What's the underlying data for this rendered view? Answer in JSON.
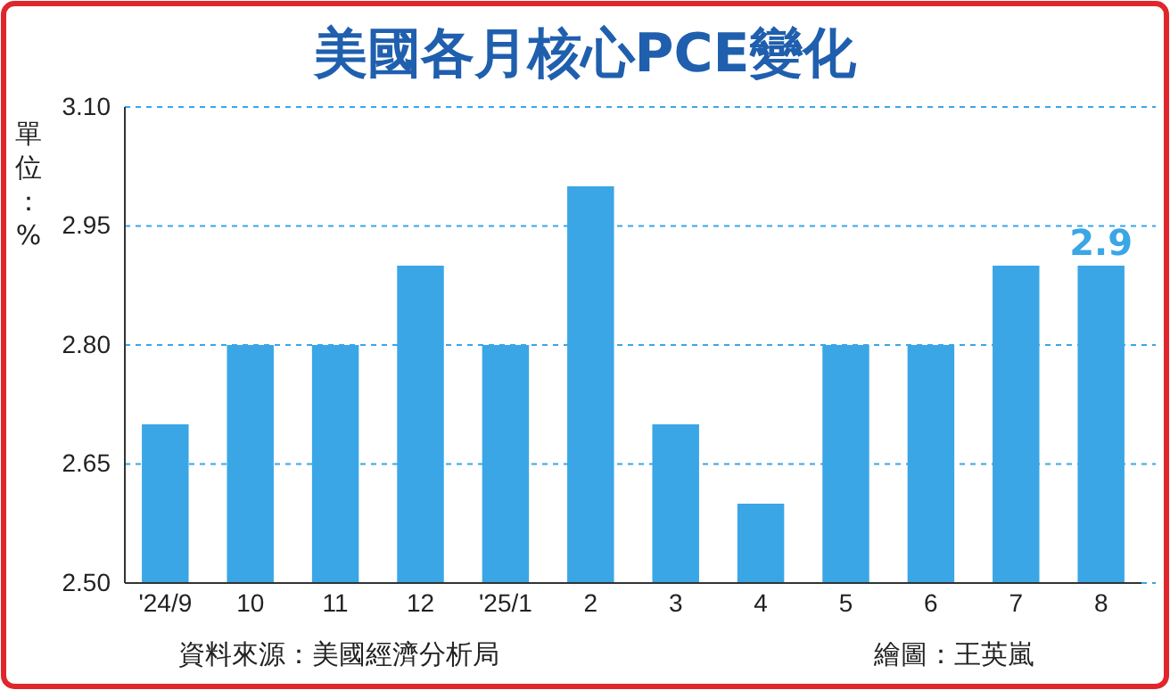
{
  "chart_data": {
    "type": "bar",
    "title": "美國各月核心PCE變化",
    "ylabel": "單位：%",
    "categories": [
      "'24/9",
      "10",
      "11",
      "12",
      "'25/1",
      "2",
      "3",
      "4",
      "5",
      "6",
      "7",
      "8"
    ],
    "values": [
      2.7,
      2.8,
      2.8,
      2.9,
      2.8,
      3.0,
      2.7,
      2.6,
      2.8,
      2.8,
      2.9,
      2.9
    ],
    "value_labels": [
      null,
      null,
      null,
      null,
      null,
      null,
      null,
      null,
      null,
      null,
      null,
      "2.9"
    ],
    "color": "#3aa6e6",
    "ylim": [
      2.5,
      3.1
    ],
    "yticks": [
      {
        "value": 2.5,
        "label": "2.50"
      },
      {
        "value": 2.65,
        "label": "2.65"
      },
      {
        "value": 2.8,
        "label": "2.80"
      },
      {
        "value": 2.95,
        "label": "2.95"
      },
      {
        "value": 3.1,
        "label": "3.10"
      }
    ],
    "grid": "y",
    "annotations": [
      "資料來源：美國經濟分析局",
      "繪圖：王英嵐"
    ]
  }
}
